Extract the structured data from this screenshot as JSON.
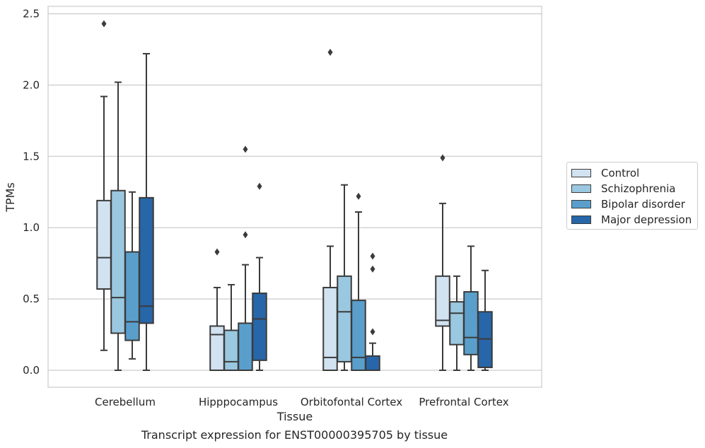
{
  "caption": "Transcript expression for ENST00000395705 by tissue",
  "chart_data": {
    "type": "box",
    "xlabel": "Tissue",
    "ylabel": "TPMs",
    "ylim": [
      -0.12,
      2.55
    ],
    "yticks": [
      "0.0",
      "0.5",
      "1.0",
      "1.5",
      "2.0",
      "2.5"
    ],
    "grid": true,
    "legend_position": "right",
    "categories": [
      "Cerebellum",
      "Hipppocampus",
      "Orbitofontal Cortex",
      "Prefrontal Cortex"
    ],
    "series": [
      {
        "name": "Control",
        "color": "#d1e2f1",
        "boxes": [
          {
            "whislo": 0.14,
            "q1": 0.57,
            "med": 0.79,
            "q3": 1.19,
            "whishi": 1.92,
            "fliers": [
              2.43
            ]
          },
          {
            "whislo": 0.0,
            "q1": 0.0,
            "med": 0.25,
            "q3": 0.31,
            "whishi": 0.58,
            "fliers": [
              0.83
            ]
          },
          {
            "whislo": 0.0,
            "q1": 0.0,
            "med": 0.09,
            "q3": 0.58,
            "whishi": 0.87,
            "fliers": [
              2.23
            ]
          },
          {
            "whislo": 0.0,
            "q1": 0.31,
            "med": 0.35,
            "q3": 0.66,
            "whishi": 1.17,
            "fliers": [
              1.49
            ]
          }
        ]
      },
      {
        "name": "Schizophrenia",
        "color": "#9ac8e0",
        "boxes": [
          {
            "whislo": 0.0,
            "q1": 0.26,
            "med": 0.51,
            "q3": 1.26,
            "whishi": 2.02,
            "fliers": []
          },
          {
            "whislo": 0.0,
            "q1": 0.0,
            "med": 0.06,
            "q3": 0.28,
            "whishi": 0.6,
            "fliers": []
          },
          {
            "whislo": 0.0,
            "q1": 0.06,
            "med": 0.41,
            "q3": 0.66,
            "whishi": 1.3,
            "fliers": []
          },
          {
            "whislo": 0.0,
            "q1": 0.18,
            "med": 0.4,
            "q3": 0.48,
            "whishi": 0.66,
            "fliers": []
          }
        ]
      },
      {
        "name": "Bipolar disorder",
        "color": "#5a9fcc",
        "boxes": [
          {
            "whislo": 0.08,
            "q1": 0.21,
            "med": 0.34,
            "q3": 0.83,
            "whishi": 1.25,
            "fliers": []
          },
          {
            "whislo": 0.0,
            "q1": 0.0,
            "med": 0.0,
            "q3": 0.33,
            "whishi": 0.74,
            "fliers": [
              0.95,
              1.55
            ]
          },
          {
            "whislo": 0.0,
            "q1": 0.0,
            "med": 0.09,
            "q3": 0.49,
            "whishi": 1.11,
            "fliers": [
              1.22
            ]
          },
          {
            "whislo": 0.0,
            "q1": 0.11,
            "med": 0.23,
            "q3": 0.55,
            "whishi": 0.87,
            "fliers": []
          }
        ]
      },
      {
        "name": "Major depression",
        "color": "#2766a8",
        "boxes": [
          {
            "whislo": 0.0,
            "q1": 0.33,
            "med": 0.45,
            "q3": 1.21,
            "whishi": 2.22,
            "fliers": []
          },
          {
            "whislo": 0.0,
            "q1": 0.07,
            "med": 0.36,
            "q3": 0.54,
            "whishi": 0.79,
            "fliers": [
              1.29
            ]
          },
          {
            "whislo": 0.0,
            "q1": 0.0,
            "med": 0.0,
            "q3": 0.1,
            "whishi": 0.19,
            "fliers": [
              0.27,
              0.71,
              0.8
            ]
          },
          {
            "whislo": 0.0,
            "q1": 0.02,
            "med": 0.22,
            "q3": 0.41,
            "whishi": 0.7,
            "fliers": []
          }
        ]
      }
    ]
  }
}
